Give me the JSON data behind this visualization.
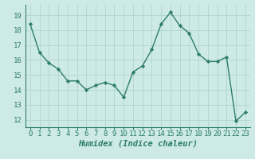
{
  "x": [
    0,
    1,
    2,
    3,
    4,
    5,
    6,
    7,
    8,
    9,
    10,
    11,
    12,
    13,
    14,
    15,
    16,
    17,
    18,
    19,
    20,
    21,
    22,
    23
  ],
  "y": [
    18.4,
    16.5,
    15.8,
    15.4,
    14.6,
    14.6,
    14.0,
    14.3,
    14.5,
    14.3,
    13.5,
    15.2,
    15.6,
    16.7,
    18.4,
    19.2,
    18.3,
    17.8,
    16.4,
    15.9,
    15.9,
    16.2,
    11.9,
    12.5
  ],
  "line_color": "#2d7d6e",
  "marker": "D",
  "marker_size": 2.2,
  "linewidth": 1.0,
  "bg_color": "#ceeae6",
  "grid_color": "#afd4cf",
  "xlabel": "Humidex (Indice chaleur)",
  "xlabel_fontsize": 7.5,
  "tick_fontsize": 6.5,
  "ylim": [
    11.5,
    19.7
  ],
  "yticks": [
    12,
    13,
    14,
    15,
    16,
    17,
    18,
    19
  ],
  "xlim": [
    -0.5,
    23.5
  ],
  "xticks": [
    0,
    1,
    2,
    3,
    4,
    5,
    6,
    7,
    8,
    9,
    10,
    11,
    12,
    13,
    14,
    15,
    16,
    17,
    18,
    19,
    20,
    21,
    22,
    23
  ]
}
